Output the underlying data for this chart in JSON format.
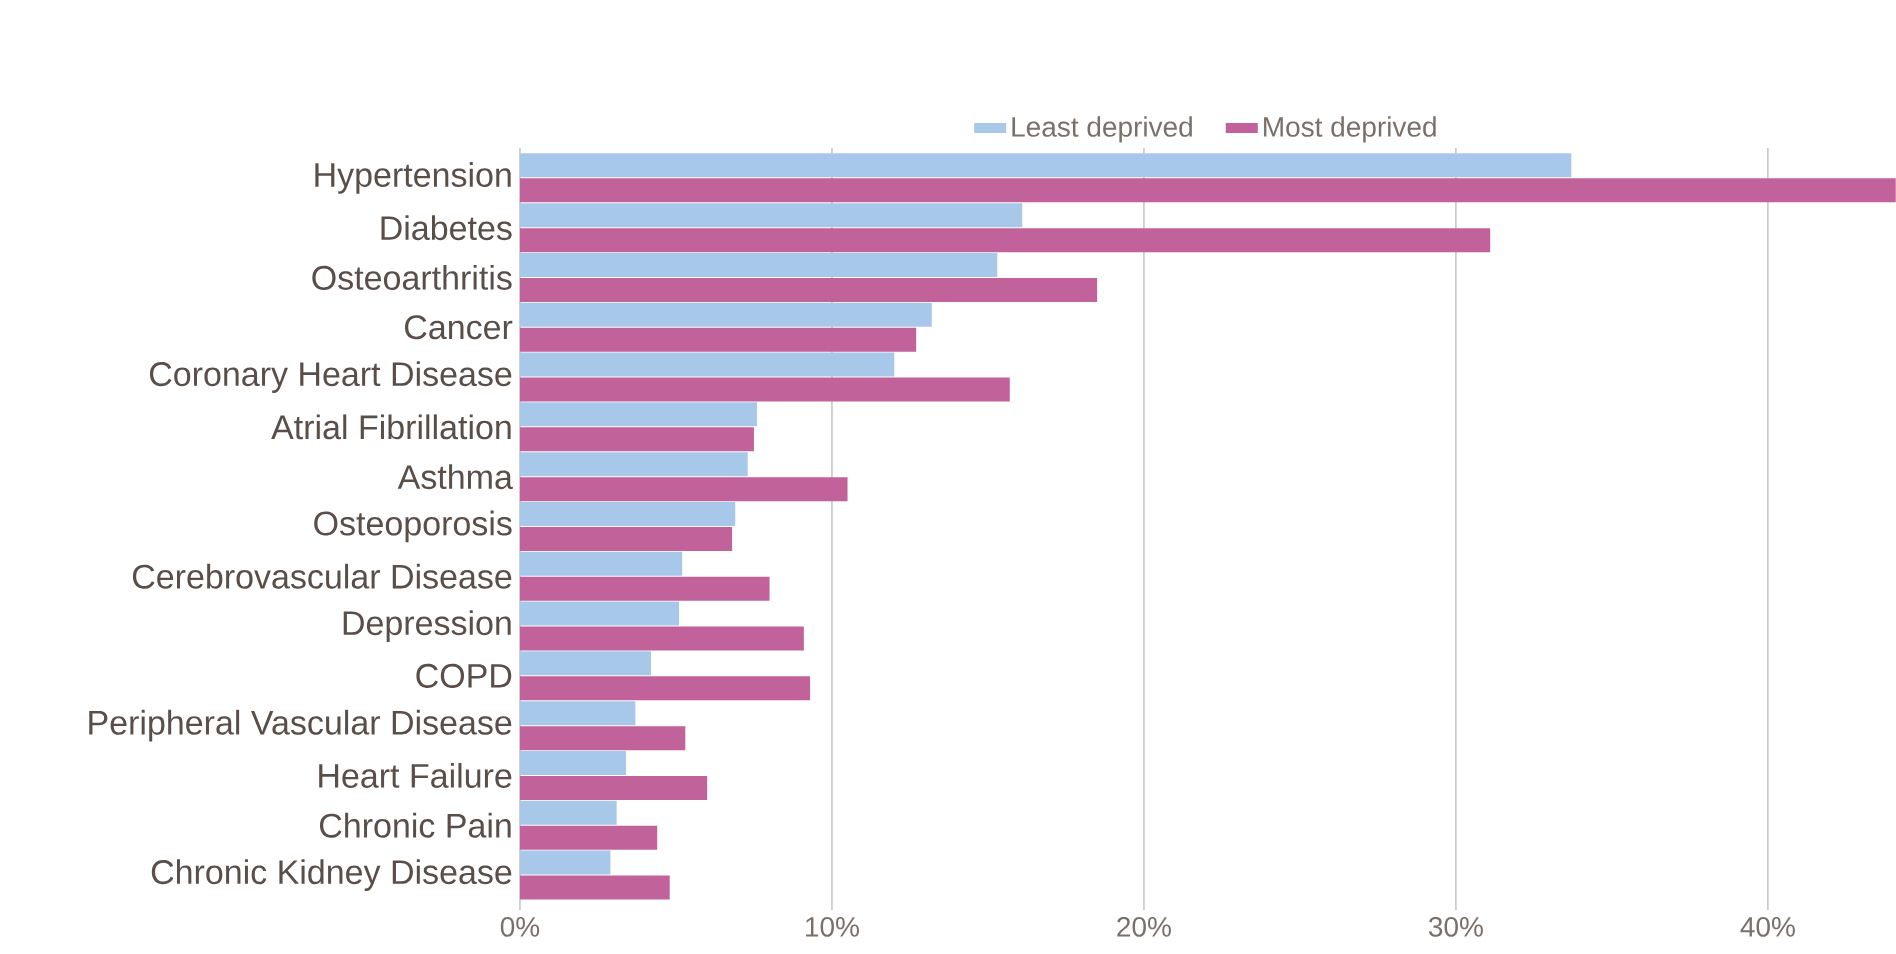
{
  "chart_data": {
    "type": "bar",
    "orientation": "horizontal",
    "categories": [
      "Hypertension",
      "Diabetes",
      "Osteoarthritis",
      "Cancer",
      "Coronary Heart Disease",
      "Atrial Fibrillation",
      "Asthma",
      "Osteoporosis",
      "Cerebrovascular Disease",
      "Depression",
      "COPD",
      "Peripheral Vascular Disease",
      "Heart Failure",
      "Chronic Pain",
      "Chronic Kidney Disease"
    ],
    "series": [
      {
        "name": "Least deprived",
        "color": "#a8c8ea",
        "values": [
          33.7,
          16.1,
          15.3,
          13.2,
          12.0,
          7.6,
          7.3,
          6.9,
          5.2,
          5.1,
          4.2,
          3.7,
          3.4,
          3.1,
          2.9
        ]
      },
      {
        "name": "Most deprived",
        "color": "#c2629a",
        "values": [
          44.1,
          31.1,
          18.5,
          12.7,
          15.7,
          7.5,
          10.5,
          6.8,
          8.0,
          9.1,
          9.3,
          5.3,
          6.0,
          4.4,
          4.8
        ]
      }
    ],
    "xlim": [
      0,
      44.1
    ],
    "xticks": [
      {
        "value": 0,
        "label": "0%"
      },
      {
        "value": 10,
        "label": "10%"
      },
      {
        "value": 20,
        "label": "20%"
      },
      {
        "value": 30,
        "label": "30%"
      },
      {
        "value": 40,
        "label": "40%"
      }
    ],
    "grid": "x",
    "legend": "top"
  }
}
